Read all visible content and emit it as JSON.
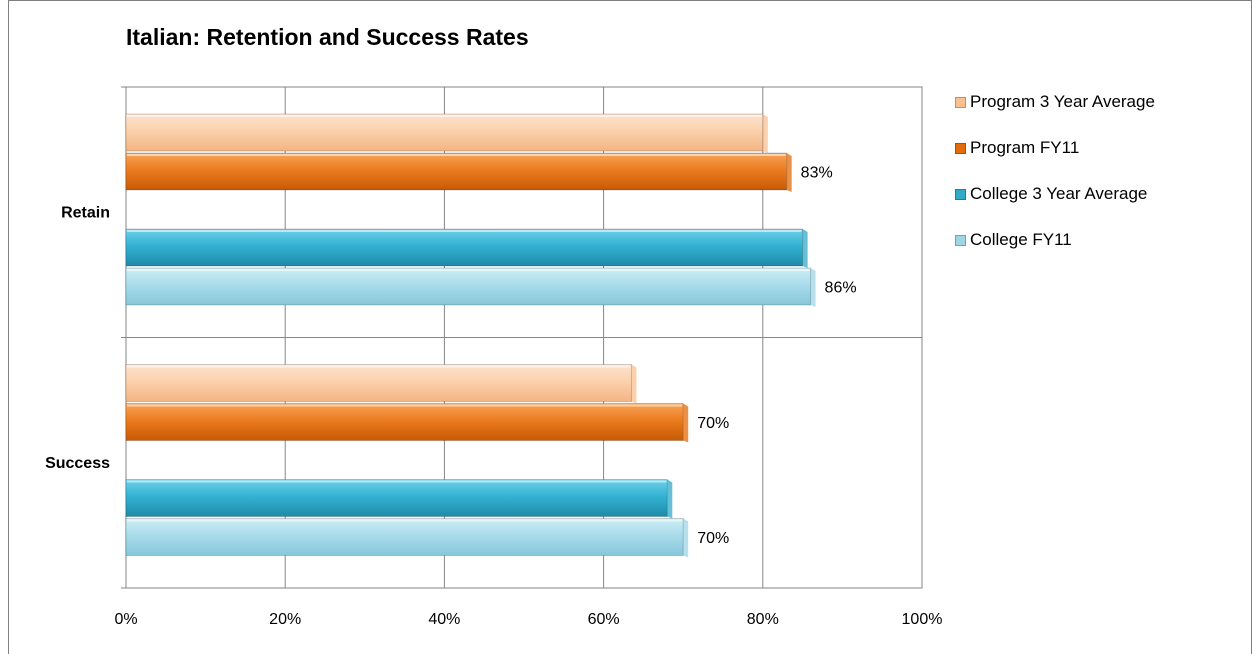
{
  "chart_data": {
    "type": "bar",
    "orientation": "horizontal",
    "title": "Italian: Retention and Success Rates",
    "categories": [
      "Retain",
      "Success"
    ],
    "xlim": [
      0,
      100
    ],
    "x_ticks": [
      "0%",
      "20%",
      "40%",
      "60%",
      "80%",
      "100%"
    ],
    "grid": true,
    "legend_position": "right",
    "series": [
      {
        "name": "Program 3 Year Average",
        "color": "#fac090",
        "values": [
          80,
          63.5
        ],
        "labels": [
          "",
          ""
        ]
      },
      {
        "name": "Program FY11",
        "color": "#e46c0a",
        "values": [
          83,
          70
        ],
        "labels": [
          "83%",
          "70%"
        ]
      },
      {
        "name": "College 3 Year Average",
        "color": "#31a9c8",
        "values": [
          85,
          68
        ],
        "labels": [
          "",
          ""
        ]
      },
      {
        "name": "College FY11",
        "color": "#9fd6e6",
        "values": [
          86,
          70
        ],
        "labels": [
          "86%",
          "70%"
        ]
      }
    ]
  }
}
